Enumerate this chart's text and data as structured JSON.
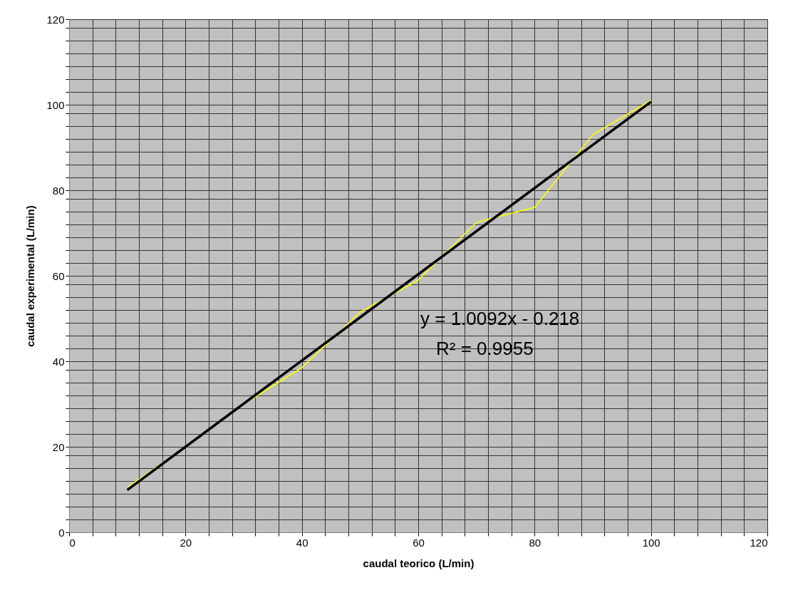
{
  "chart_data": {
    "type": "line",
    "xlabel": "caudal teorico (L/min)",
    "ylabel": "caudal experimental (L/min)",
    "x": [
      10,
      20,
      30,
      40,
      50,
      60,
      70,
      80,
      90,
      100
    ],
    "series": [
      {
        "color": "#ffff00",
        "values": [
          10.5,
          20,
          30,
          38.5,
          51.5,
          59,
          72.5,
          76,
          93,
          101
        ]
      },
      {
        "type": "line",
        "color": "#000000",
        "x": [
          10,
          100
        ],
        "values": [
          9.9,
          100.7
        ]
      }
    ],
    "xlim": [
      0,
      120
    ],
    "ylim": [
      0,
      120
    ],
    "xticks": [
      0,
      {
        "value": 4,
        "label": null
      },
      {
        "value": 8,
        "label": null
      },
      {
        "value": 12,
        "label": null
      },
      {
        "value": 16,
        "label": null
      },
      20,
      {
        "value": 24,
        "label": null
      },
      {
        "value": 28,
        "label": null
      },
      {
        "value": 32,
        "label": null
      },
      {
        "value": 36,
        "label": null
      },
      40,
      {
        "value": 44,
        "label": null
      },
      {
        "value": 48,
        "label": null
      },
      {
        "value": 52,
        "label": null
      },
      {
        "value": 56,
        "label": null
      },
      60,
      {
        "value": 64,
        "label": null
      },
      {
        "value": 68,
        "label": null
      },
      {
        "value": 72,
        "label": null
      },
      {
        "value": 76,
        "label": null
      },
      80,
      {
        "value": 84,
        "label": null
      },
      {
        "value": 88,
        "label": null
      },
      {
        "value": 92,
        "label": null
      },
      {
        "value": 96,
        "label": null
      },
      100,
      {
        "value": 104,
        "label": null
      },
      {
        "value": 108,
        "label": null
      },
      {
        "value": 112,
        "label": null
      },
      {
        "value": 116,
        "label": null
      },
      120
    ],
    "yticks": [
      0,
      {
        "value": 3,
        "label": null
      },
      {
        "value": 6,
        "label": null
      },
      {
        "value": 9,
        "label": null
      },
      {
        "value": 12,
        "label": null
      },
      {
        "value": 15,
        "label": null
      },
      {
        "value": 18,
        "label": null
      },
      20,
      {
        "value": 23,
        "label": null
      },
      {
        "value": 26,
        "label": null
      },
      {
        "value": 29,
        "label": null
      },
      {
        "value": 32,
        "label": null
      },
      {
        "value": 35,
        "label": null
      },
      {
        "value": 38,
        "label": null
      },
      40,
      {
        "value": 43,
        "label": null
      },
      {
        "value": 46,
        "label": null
      },
      {
        "value": 49,
        "label": null
      },
      {
        "value": 52,
        "label": null
      },
      {
        "value": 55,
        "label": null
      },
      {
        "value": 58,
        "label": null
      },
      60,
      {
        "value": 63,
        "label": null
      },
      {
        "value": 66,
        "label": null
      },
      {
        "value": 69,
        "label": null
      },
      {
        "value": 72,
        "label": null
      },
      {
        "value": 75,
        "label": null
      },
      {
        "value": 78,
        "label": null
      },
      80,
      {
        "value": 83,
        "label": null
      },
      {
        "value": 86,
        "label": null
      },
      {
        "value": 89,
        "label": null
      },
      {
        "value": 92,
        "label": null
      },
      {
        "value": 95,
        "label": null
      },
      {
        "value": 98,
        "label": null
      },
      100,
      {
        "value": 103,
        "label": null
      },
      {
        "value": 106,
        "label": null
      },
      {
        "value": 109,
        "label": null
      },
      {
        "value": 112,
        "label": null
      },
      {
        "value": 115,
        "label": null
      },
      {
        "value": 118,
        "label": null
      },
      120
    ],
    "grid": true,
    "marker": "none",
    "line_style": "solid",
    "annotations": [
      "y = 1.0092x - 0.218",
      "R² = 0.9955"
    ]
  }
}
